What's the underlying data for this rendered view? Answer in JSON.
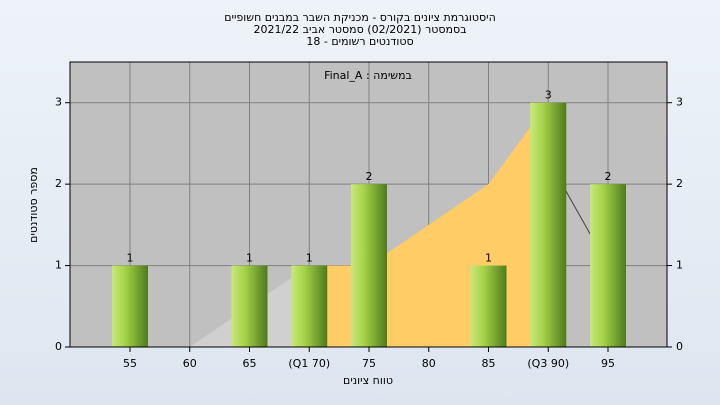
{
  "chart_data": {
    "type": "bar",
    "title": [
      "היסטוגרמת ציונים בקורס - מכניקת השבר במבנים חשופיים",
      "בסמסטר  (02/2021)  סמסטר אביב 2021/22",
      "סטודנטים רשומים - 18"
    ],
    "annotation": "Final_A : במשימה",
    "x_label": "טווח ציונים",
    "y_label": "מספר סטודנטים",
    "categories": [
      "55",
      "60",
      "65",
      "(Q1 70)",
      "75",
      "80",
      "85",
      "(Q3 90)",
      "95"
    ],
    "series": [
      {
        "type": "bar",
        "color": "#9ccc3c",
        "values": [
          1,
          0,
          1,
          1,
          2,
          0,
          1,
          3,
          2
        ],
        "value_labels": [
          "1",
          null,
          "1",
          "1",
          "2",
          null,
          "1",
          "3",
          "2"
        ]
      },
      {
        "type": "area",
        "color": "#d0d0d0",
        "values": [
          null,
          0,
          0.5,
          1,
          null,
          null,
          null,
          null,
          null
        ]
      },
      {
        "type": "area",
        "color": "#ffcc66",
        "values": [
          null,
          null,
          null,
          1,
          1,
          1.5,
          2,
          3,
          null
        ]
      },
      {
        "type": "line",
        "color": "#404040",
        "values": [
          null,
          null,
          null,
          null,
          null,
          null,
          null,
          2.3,
          1
        ]
      }
    ],
    "ylim": [
      0,
      3.5
    ],
    "yticks": [
      0,
      1,
      2,
      3
    ],
    "y2lim": [
      0,
      3.5
    ],
    "y2ticks": [
      0,
      1,
      2,
      3
    ],
    "grid": true
  }
}
